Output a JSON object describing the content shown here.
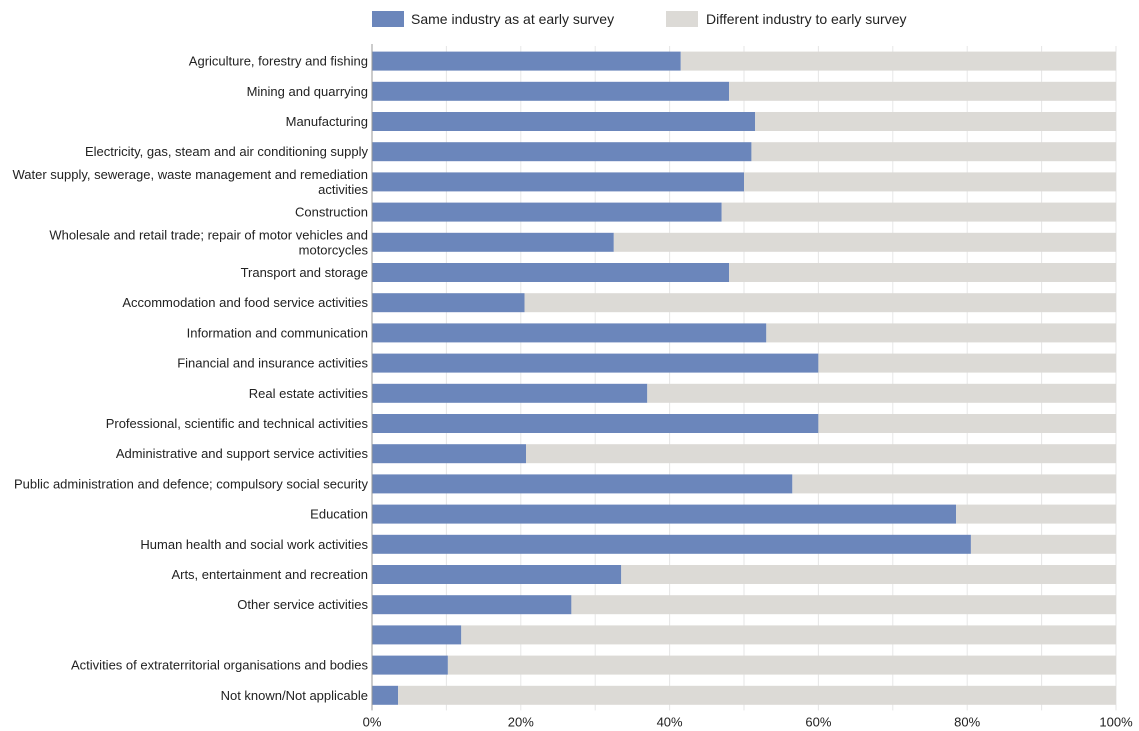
{
  "chart_data": {
    "type": "bar",
    "orientation": "horizontal",
    "stacked": true,
    "categories": [
      "Agriculture, forestry and fishing",
      "Mining and quarrying",
      "Manufacturing",
      "Electricity, gas, steam and air conditioning supply",
      "Water supply, sewerage, waste management and remediation activities",
      "Construction",
      "Wholesale and retail trade; repair of motor vehicles and motorcycles",
      "Transport and storage",
      "Accommodation and food service activities",
      "Information and communication",
      "Financial and insurance activities",
      "Real estate activities",
      "Professional, scientific and technical activities",
      "Administrative and support service activities",
      "Public administration and defence; compulsory social security",
      "Education",
      "Human health and social work activities",
      "Arts, entertainment and recreation",
      "Other service activities",
      "",
      "Activities of extraterritorial organisations and bodies",
      "Not known/Not applicable"
    ],
    "series": [
      {
        "name": "Same industry as at early survey",
        "values": [
          41.5,
          48,
          51.5,
          51,
          50,
          47,
          32.5,
          48,
          20.5,
          53,
          60,
          37,
          60,
          20.7,
          56.5,
          78.5,
          80.5,
          33.5,
          26.8,
          12,
          10.2,
          3.5
        ]
      },
      {
        "name": "Different industry to early survey",
        "values": [
          58.5,
          52,
          48.5,
          49,
          50,
          53,
          67.5,
          52,
          79.5,
          47,
          40,
          63,
          40,
          79.3,
          43.5,
          21.5,
          19.5,
          66.5,
          73.2,
          88,
          89.8,
          96.5
        ]
      }
    ],
    "xlim": [
      0,
      100
    ],
    "xticks": [
      0,
      20,
      40,
      60,
      80,
      100
    ],
    "tick_labels": [
      "0%",
      "20%",
      "40%",
      "60%",
      "80%",
      "100%"
    ],
    "grid": true,
    "legend_position": "top-center",
    "colors": {
      "same": "#6b86bb",
      "different": "#dcdad6",
      "grid": "#e6e6e6",
      "axis": "#999999"
    },
    "title": "",
    "xlabel": "",
    "ylabel": ""
  }
}
